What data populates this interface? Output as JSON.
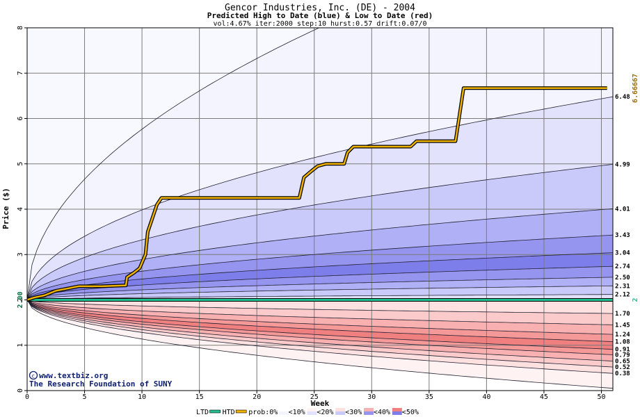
{
  "header": {
    "title": "Gencor Industries, Inc. (DE) - 2004",
    "subtitle": "Predicted High to Date (blue) &  Low to Date (red)",
    "params": "vol:4.67% iter:2000 step:10 hurst:0.57 drift:0.07/0"
  },
  "credit": {
    "line1": "www.textbiz.org",
    "line2": "The Research Foundation of SUNY"
  },
  "legend": {
    "ltd": "LTD",
    "htd": "HTD",
    "prob": "prob:0%",
    "p10": "<10%",
    "p20": "<20%",
    "p30": "<30%",
    "p40": "<40%",
    "p50": "<50%"
  },
  "colors": {
    "high_bands": [
      "#f4f4ff",
      "#e2e2fd",
      "#c9c9fa",
      "#b0b0f6",
      "#9595f0",
      "#7e7eea"
    ],
    "low_bands": [
      "#fff2f2",
      "#fde0e0",
      "#fbcaca",
      "#f8b0b0",
      "#f59898",
      "#f08080"
    ],
    "htd": "#f0b400",
    "ltd": "#20c090",
    "left_label": "#007040",
    "right_label": "#a07000"
  },
  "chart_data": {
    "type": "line",
    "xlabel": "Week",
    "ylabel": "Price ($)",
    "xlim": [
      0,
      51
    ],
    "ylim": [
      0,
      8
    ],
    "x_ticks": [
      0,
      5,
      10,
      15,
      20,
      25,
      30,
      35,
      40,
      45,
      50
    ],
    "y_ticks": [
      0,
      1,
      2,
      3,
      4,
      5,
      6,
      7,
      8
    ],
    "start_price": 2.0,
    "start_label": "2.00",
    "ltd_value": 2,
    "ltd_label": "2",
    "htd_value": 6.66667,
    "htd_label": "6.66667",
    "high_quantiles": [
      {
        "end": 10.5,
        "label": ""
      },
      {
        "end": 6.48,
        "label": "6.48"
      },
      {
        "end": 4.99,
        "label": "4.99"
      },
      {
        "end": 4.01,
        "label": "4.01"
      },
      {
        "end": 3.43,
        "label": "3.43"
      },
      {
        "end": 3.04,
        "label": "3.04"
      },
      {
        "end": 2.74,
        "label": "2.74"
      },
      {
        "end": 2.5,
        "label": "2.50"
      },
      {
        "end": 2.31,
        "label": "2.31"
      },
      {
        "end": 2.12,
        "label": "2.12"
      }
    ],
    "low_quantiles": [
      {
        "end": 1.7,
        "label": "1.70"
      },
      {
        "end": 1.45,
        "label": "1.45"
      },
      {
        "end": 1.24,
        "label": "1.24"
      },
      {
        "end": 1.08,
        "label": "1.08"
      },
      {
        "end": 0.91,
        "label": "0.91"
      },
      {
        "end": 0.79,
        "label": "0.79"
      },
      {
        "end": 0.65,
        "label": "0.65"
      },
      {
        "end": 0.52,
        "label": "0.52"
      },
      {
        "end": 0.38,
        "label": "0.38"
      },
      {
        "end": 0.05,
        "label": ""
      }
    ],
    "htd_path": [
      [
        0,
        2.0
      ],
      [
        0.6,
        2.05
      ],
      [
        1.5,
        2.1
      ],
      [
        2.5,
        2.2
      ],
      [
        3.5,
        2.25
      ],
      [
        4.5,
        2.3
      ],
      [
        6.5,
        2.3
      ],
      [
        8.6,
        2.32
      ],
      [
        8.7,
        2.5
      ],
      [
        9.3,
        2.6
      ],
      [
        9.8,
        2.7
      ],
      [
        10.3,
        3.0
      ],
      [
        10.5,
        3.5
      ],
      [
        10.9,
        3.8
      ],
      [
        11.3,
        4.1
      ],
      [
        11.7,
        4.25
      ],
      [
        12.2,
        4.25
      ],
      [
        23.7,
        4.25
      ],
      [
        24.1,
        4.7
      ],
      [
        24.8,
        4.85
      ],
      [
        25.3,
        4.95
      ],
      [
        26.0,
        5.0
      ],
      [
        27.6,
        5.0
      ],
      [
        27.9,
        5.25
      ],
      [
        28.4,
        5.38
      ],
      [
        33.4,
        5.38
      ],
      [
        33.9,
        5.5
      ],
      [
        37.3,
        5.5
      ],
      [
        37.6,
        6.0
      ],
      [
        38.0,
        6.67
      ],
      [
        50.5,
        6.67
      ]
    ]
  }
}
